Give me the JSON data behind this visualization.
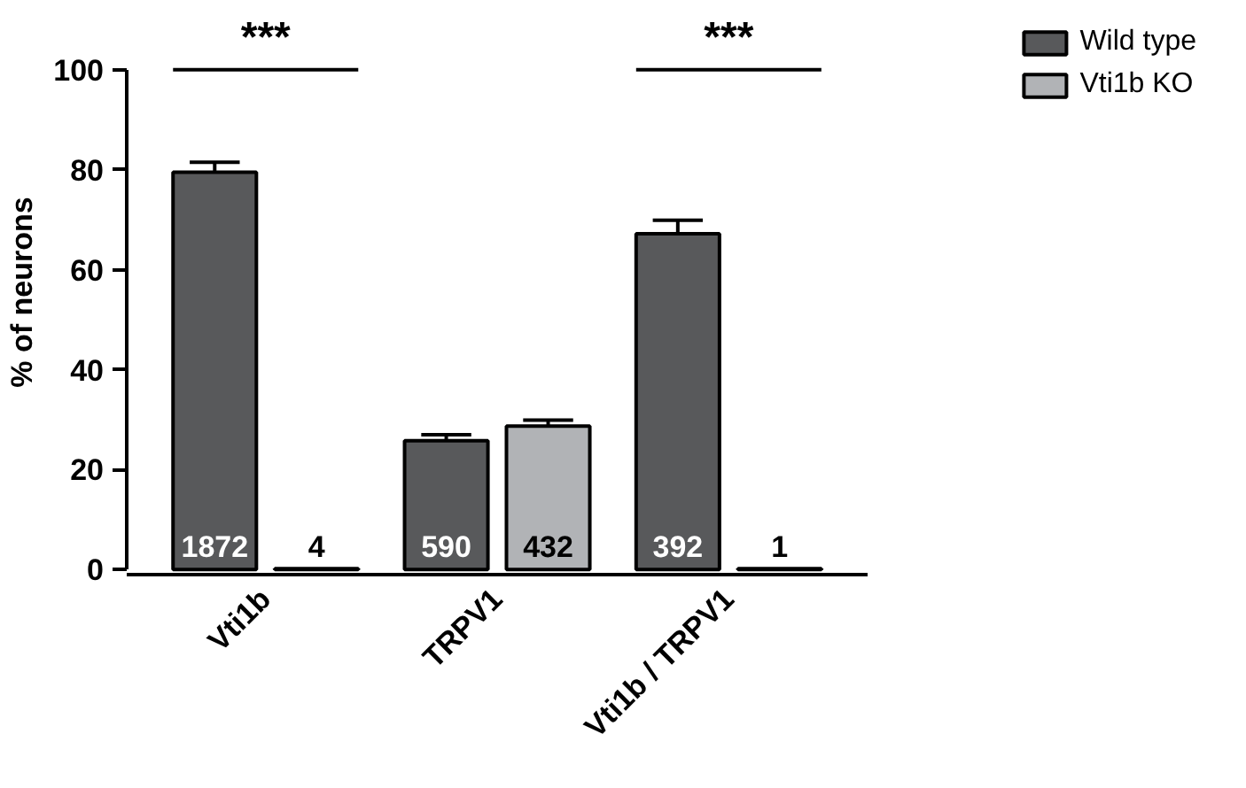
{
  "chart_data": {
    "type": "bar",
    "ylabel": "% of neurons",
    "categories": [
      "Vti1b",
      "TRPV1",
      "Vti1b / TRPV1"
    ],
    "series": [
      {
        "name": "Wild type",
        "color": "#58595b",
        "values": [
          79.5,
          25.8,
          67.2
        ],
        "errors": [
          2,
          1.2,
          2.7
        ]
      },
      {
        "name": "Vti1b KO",
        "color": "#b1b3b6",
        "values": [
          0.2,
          28.7,
          0.2
        ],
        "errors": [
          null,
          1.2,
          null
        ]
      }
    ],
    "ylim": [
      0,
      100
    ],
    "yticks": [
      0,
      20,
      40,
      60,
      80,
      100
    ],
    "annotations": [
      "***",
      "***",
      "1872",
      "4",
      "590",
      "432",
      "392",
      "1"
    ],
    "legend": "top right",
    "grid": false
  }
}
